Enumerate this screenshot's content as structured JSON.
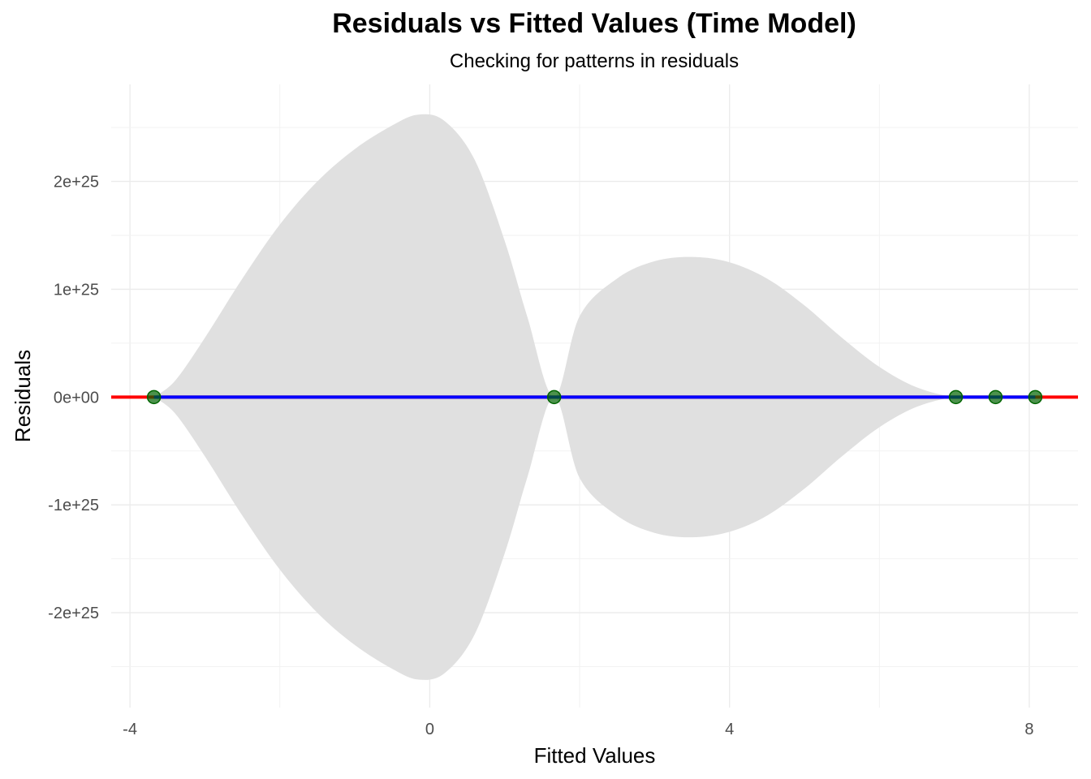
{
  "chart_data": {
    "type": "scatter",
    "title": "Residuals vs Fitted Values (Time Model)",
    "subtitle": "Checking for patterns in residuals",
    "xlabel": "Fitted Values",
    "ylabel": "Residuals",
    "xlim": [
      -4.25,
      8.65
    ],
    "ylim": [
      -2.88e+25,
      2.9e+25
    ],
    "x_ticks": [
      -4,
      0,
      4,
      8
    ],
    "x_tick_labels": [
      "-4",
      "0",
      "4",
      "8"
    ],
    "y_ticks": [
      -2e+25,
      -1e+25,
      0,
      1e+25,
      2e+25
    ],
    "y_tick_labels": [
      "-2e+25",
      "-1e+25",
      "0e+00",
      "1e+25",
      "2e+25"
    ],
    "grid": true,
    "points": [
      {
        "x": -3.68,
        "y": 0
      },
      {
        "x": 1.66,
        "y": 0
      },
      {
        "x": 7.02,
        "y": 0
      },
      {
        "x": 7.55,
        "y": 0
      },
      {
        "x": 8.08,
        "y": 0
      }
    ],
    "reference_line": {
      "y": 0,
      "color": "#ff0000"
    },
    "smooth_line": {
      "x": [
        -3.68,
        8.08
      ],
      "y": [
        0,
        0
      ],
      "color": "#0000ff"
    },
    "confidence_band": {
      "color": "#e0e0e0",
      "x": [
        -3.68,
        -3.4,
        -3.0,
        -2.5,
        -2.0,
        -1.5,
        -1.0,
        -0.5,
        -0.15,
        0.2,
        0.6,
        1.0,
        1.3,
        1.66,
        2.0,
        2.5,
        3.0,
        3.5,
        4.0,
        4.5,
        5.0,
        5.5,
        6.0,
        6.5,
        7.02,
        7.55,
        8.08
      ],
      "half_width": [
        0,
        1.5e+24,
        5.5e+24,
        1.1e+25,
        1.6e+25,
        2e+25,
        2.3e+25,
        2.52e+25,
        2.62e+25,
        2.56e+25,
        2.2e+25,
        1.45e+25,
        7.5e+24,
        0,
        7.5e+24,
        1.1e+25,
        1.26e+25,
        1.3e+25,
        1.25e+25,
        1.1e+25,
        8.5e+24,
        5.5e+24,
        2.8e+24,
        9e+23,
        0,
        0,
        0
      ]
    },
    "point_color": "#006400"
  }
}
